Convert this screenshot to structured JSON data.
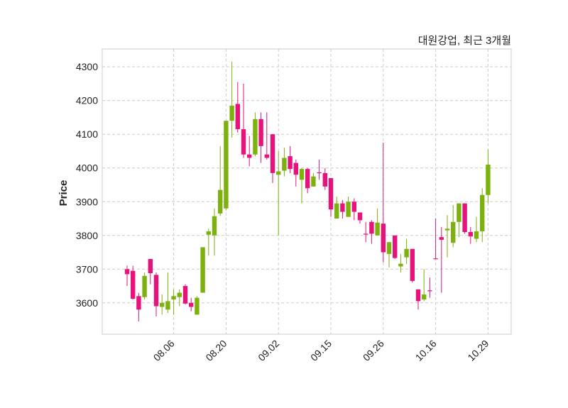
{
  "chart_data": {
    "type": "candlestick",
    "title": "대원강업, 최근 3개월",
    "xlabel": "",
    "ylabel": "Price",
    "ylim": [
      3507,
      4353
    ],
    "yticks": [
      3600,
      3700,
      3800,
      3900,
      4000,
      4100,
      4200,
      4300
    ],
    "ytick_labels": [
      "3600",
      "3700",
      "3800",
      "3900",
      "4000",
      "4100",
      "4200",
      "4300"
    ],
    "xticks": [
      {
        "index": 8,
        "label": "08.06"
      },
      {
        "index": 17,
        "label": "08.20"
      },
      {
        "index": 26,
        "label": "09.02"
      },
      {
        "index": 35,
        "label": "09.15"
      },
      {
        "index": 44,
        "label": "09.26"
      },
      {
        "index": 53,
        "label": "10.16"
      },
      {
        "index": 62,
        "label": "10.29"
      }
    ],
    "grid": true,
    "up_color": "#7cb10e",
    "down_color": "#e8127c",
    "ohlc": [
      [
        3700,
        3710,
        3650,
        3685
      ],
      [
        3695,
        3710,
        3610,
        3612
      ],
      [
        3620,
        3630,
        3545,
        3580
      ],
      [
        3617,
        3690,
        3610,
        3680
      ],
      [
        3730,
        3730,
        3655,
        3688
      ],
      [
        3683,
        3690,
        3560,
        3590
      ],
      [
        3588,
        3625,
        3565,
        3600
      ],
      [
        3580,
        3690,
        3570,
        3605
      ],
      [
        3610,
        3640,
        3565,
        3620
      ],
      [
        3617,
        3640,
        3590,
        3630
      ],
      [
        3650,
        3655,
        3595,
        3598
      ],
      [
        3600,
        3615,
        3575,
        3588
      ],
      [
        3565,
        3620,
        3565,
        3615
      ],
      [
        3630,
        3765,
        3630,
        3765
      ],
      [
        3802,
        3820,
        3740,
        3812
      ],
      [
        3800,
        3880,
        3740,
        3857
      ],
      [
        3865,
        4065,
        3858,
        3935
      ],
      [
        3880,
        4140,
        3875,
        4140
      ],
      [
        4140,
        4315,
        4090,
        4185
      ],
      [
        4190,
        4255,
        4105,
        4115
      ],
      [
        4115,
        4250,
        4030,
        4040
      ],
      [
        4040,
        4095,
        4005,
        4030
      ],
      [
        4040,
        4165,
        4035,
        4145
      ],
      [
        4145,
        4165,
        4015,
        4065
      ],
      [
        4040,
        4165,
        4025,
        4030
      ],
      [
        4100,
        4100,
        3955,
        3985
      ],
      [
        3980,
        4050,
        3800,
        3990
      ],
      [
        3992,
        4060,
        3975,
        4030
      ],
      [
        4035,
        4065,
        3985,
        3997
      ],
      [
        4015,
        4025,
        3945,
        3980
      ],
      [
        3965,
        4000,
        3895,
        3997
      ],
      [
        3997,
        4000,
        3925,
        3940
      ],
      [
        3945,
        3985,
        3945,
        3975
      ],
      [
        3987,
        4025,
        3965,
        3985
      ],
      [
        3985,
        4000,
        3935,
        3945
      ],
      [
        3970,
        3970,
        3855,
        3877
      ],
      [
        3850,
        3915,
        3850,
        3895
      ],
      [
        3895,
        3905,
        3850,
        3870
      ],
      [
        3855,
        3915,
        3855,
        3900
      ],
      [
        3900,
        3910,
        3845,
        3870
      ],
      [
        3868,
        3868,
        3835,
        3845
      ],
      [
        3805,
        3840,
        3780,
        3803
      ],
      [
        3840,
        3845,
        3775,
        3805
      ],
      [
        3800,
        3880,
        3800,
        3838
      ],
      [
        3835,
        4075,
        3720,
        3750
      ],
      [
        3745,
        3780,
        3705,
        3780
      ],
      [
        3800,
        3800,
        3730,
        3733
      ],
      [
        3708,
        3745,
        3690,
        3716
      ],
      [
        3735,
        3790,
        3715,
        3760
      ],
      [
        3760,
        3760,
        3660,
        3665
      ],
      [
        3640,
        3640,
        3580,
        3605
      ],
      [
        3610,
        3700,
        3605,
        3625
      ],
      [
        3637,
        3675,
        3615,
        3635
      ],
      [
        3732,
        3850,
        3730,
        3730
      ],
      [
        3795,
        3825,
        3630,
        3787
      ],
      [
        3815,
        3860,
        3735,
        3820
      ],
      [
        3778,
        3890,
        3765,
        3840
      ],
      [
        3840,
        3895,
        3795,
        3895
      ],
      [
        3895,
        3895,
        3805,
        3810
      ],
      [
        3810,
        3825,
        3775,
        3797
      ],
      [
        3790,
        3855,
        3780,
        3812
      ],
      [
        3812,
        3940,
        3780,
        3920
      ],
      [
        3920,
        4055,
        3895,
        4010
      ]
    ]
  }
}
